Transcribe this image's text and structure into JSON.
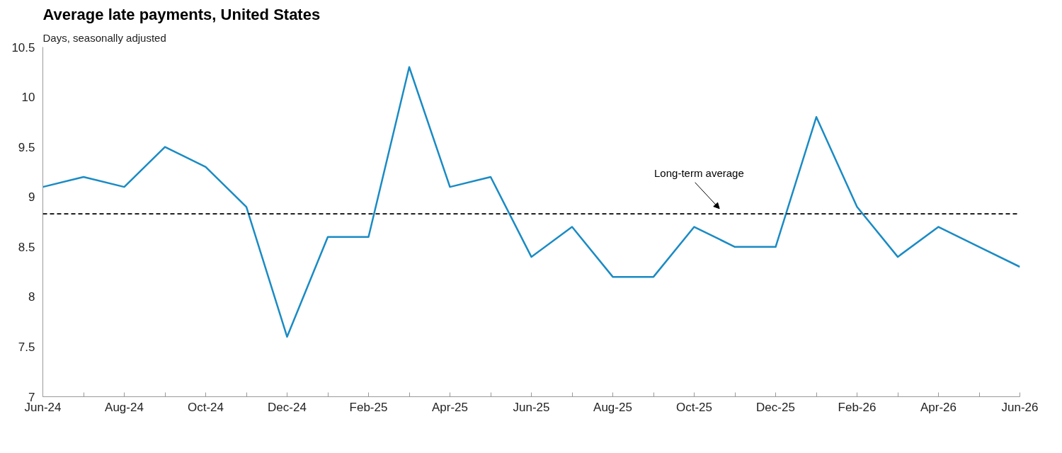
{
  "chart_data": {
    "type": "line",
    "title": "Average late payments, United States",
    "subtitle": "Days, seasonally adjusted",
    "categories": [
      "Jun-24",
      null,
      "Aug-24",
      null,
      "Oct-24",
      null,
      "Dec-24",
      null,
      "Feb-25",
      null,
      "Apr-25",
      null,
      "Jun-25",
      null,
      "Aug-25",
      null,
      "Oct-25",
      null,
      "Dec-25",
      null,
      "Feb-26",
      null,
      "Apr-26",
      null,
      "Jun-26"
    ],
    "series": [
      {
        "color": "#1a8bc4",
        "values": [
          9.1,
          9.2,
          9.1,
          9.5,
          9.3,
          8.9,
          7.6,
          8.6,
          8.6,
          10.3,
          9.1,
          9.2,
          8.4,
          8.7,
          8.2,
          8.2,
          8.7,
          8.5,
          8.5,
          9.8,
          8.9,
          8.4,
          8.7,
          8.5,
          8.3
        ]
      }
    ],
    "ylim": [
      7,
      10.5
    ],
    "yticks": [
      7,
      7.5,
      8,
      8.5,
      9,
      9.5,
      10,
      10.5
    ],
    "ref_lines": [
      {
        "axis": "y",
        "value": 8.83,
        "label": "Long-term average",
        "color": "#000000",
        "line_style": "dashed"
      }
    ],
    "grid": false,
    "marker": "none",
    "line_style": "solid"
  }
}
